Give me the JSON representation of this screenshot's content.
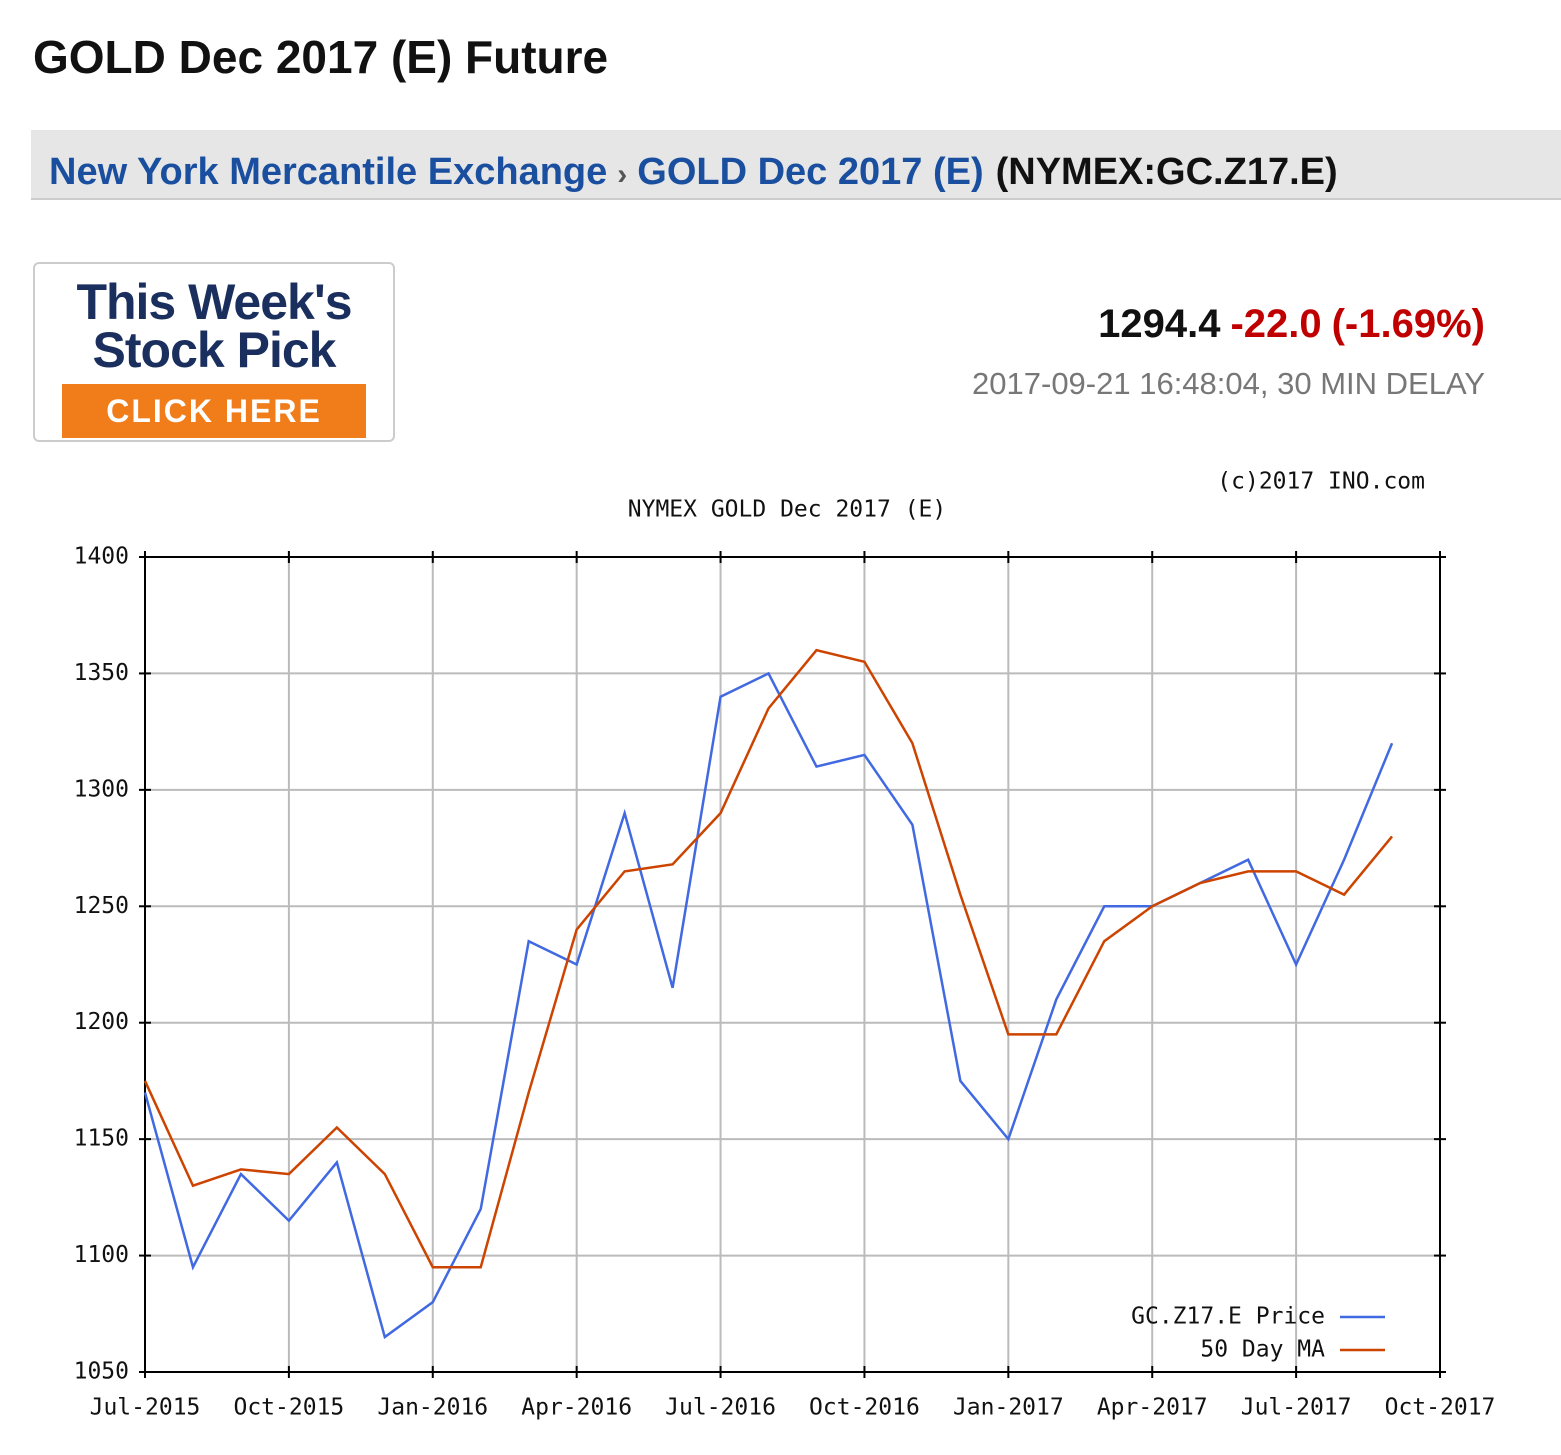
{
  "header": {
    "title": "GOLD Dec 2017 (E) Future"
  },
  "breadcrumb": {
    "exchange": "New York Mercantile Exchange",
    "separator": "›",
    "contract": "GOLD Dec 2017 (E)",
    "symbol": "(NYMEX:GC.Z17.E)"
  },
  "ad": {
    "line1": "This Week's",
    "line2": "Stock Pick",
    "button": "CLICK HERE"
  },
  "quote": {
    "price": "1294.4",
    "change": "-22.0",
    "change_pct": "(-1.69%)",
    "timestamp": "2017-09-21 16:48:04, 30 MIN DELAY"
  },
  "chart_data": {
    "type": "line",
    "title": "NYMEX GOLD Dec 2017 (E)",
    "copyright": "(c)2017 INO.com",
    "x": [
      "Jul-2015",
      "Aug-2015",
      "Sep-2015",
      "Oct-2015",
      "Nov-2015",
      "Dec-2015",
      "Jan-2016",
      "Feb-2016",
      "Mar-2016",
      "Apr-2016",
      "May-2016",
      "Jun-2016",
      "Jul-2016",
      "Aug-2016",
      "Sep-2016",
      "Oct-2016",
      "Nov-2016",
      "Dec-2016",
      "Jan-2017",
      "Feb-2017",
      "Mar-2017",
      "Apr-2017",
      "May-2017",
      "Jun-2017",
      "Jul-2017",
      "Aug-2017",
      "Sep-2017",
      "Oct-2017"
    ],
    "series": [
      {
        "name": "GC.Z17.E Price",
        "color": "#4169e1",
        "values": [
          1170,
          1095,
          1135,
          1115,
          1140,
          1065,
          1080,
          1120,
          1235,
          1225,
          1290,
          1215,
          1340,
          1350,
          1310,
          1315,
          1285,
          1175,
          1150,
          1210,
          1250,
          1250,
          1260,
          1270,
          1225,
          1270,
          1320,
          null
        ]
      },
      {
        "name": "50 Day MA",
        "color": "#cc4400",
        "values": [
          1175,
          1130,
          1137,
          1135,
          1155,
          1135,
          1095,
          1095,
          1170,
          1240,
          1265,
          1268,
          1290,
          1335,
          1360,
          1355,
          1320,
          1255,
          1195,
          1195,
          1235,
          1250,
          1260,
          1265,
          1265,
          1255,
          1280,
          null
        ]
      }
    ],
    "xlim": [
      "Jul-2015",
      "Oct-2017"
    ],
    "xticks": [
      "Jul-2015",
      "Oct-2015",
      "Jan-2016",
      "Apr-2016",
      "Jul-2016",
      "Oct-2016",
      "Jan-2017",
      "Apr-2017",
      "Jul-2017",
      "Oct-2017"
    ],
    "ylim": [
      1050,
      1400
    ],
    "yticks": [
      1050,
      1100,
      1150,
      1200,
      1250,
      1300,
      1350,
      1400
    ],
    "grid": true,
    "legend": "lower right"
  }
}
